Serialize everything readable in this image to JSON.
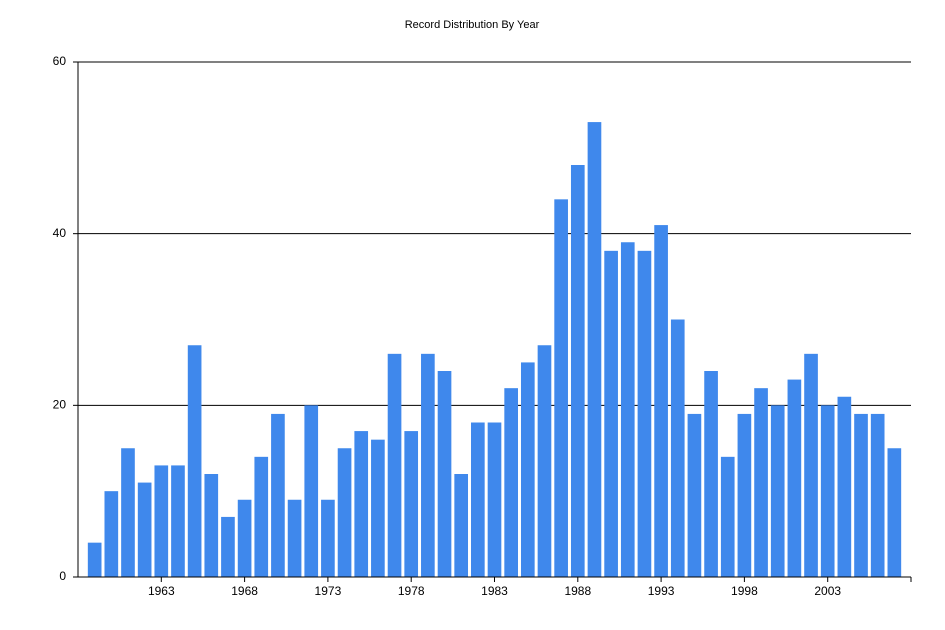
{
  "chart_data": {
    "type": "bar",
    "title": "Record Distribution By Year",
    "x": [
      1959,
      1960,
      1961,
      1962,
      1963,
      1964,
      1965,
      1966,
      1967,
      1968,
      1969,
      1970,
      1971,
      1972,
      1973,
      1974,
      1975,
      1976,
      1977,
      1978,
      1979,
      1980,
      1981,
      1982,
      1983,
      1984,
      1985,
      1986,
      1987,
      1988,
      1989,
      1990,
      1991,
      1992,
      1993,
      1994,
      1995,
      1996,
      1997,
      1998,
      1999,
      2000,
      2001,
      2002,
      2003,
      2004,
      2005,
      2006,
      2007
    ],
    "values": [
      4,
      10,
      15,
      11,
      13,
      13,
      27,
      12,
      7,
      9,
      14,
      19,
      9,
      20,
      9,
      15,
      17,
      16,
      26,
      17,
      26,
      24,
      12,
      18,
      18,
      22,
      25,
      27,
      44,
      48,
      53,
      38,
      39,
      38,
      41,
      30,
      19,
      24,
      14,
      19,
      22,
      20,
      23,
      26,
      20,
      21,
      19,
      19,
      15
    ],
    "color": "#3f88ec",
    "xlim": [
      1958,
      2008
    ],
    "xticks": [
      1963,
      1968,
      1973,
      1978,
      1983,
      1988,
      1993,
      1998,
      2003
    ],
    "ylim": [
      0,
      60
    ],
    "yticks": [
      0,
      20,
      40,
      60
    ],
    "grid": true
  }
}
